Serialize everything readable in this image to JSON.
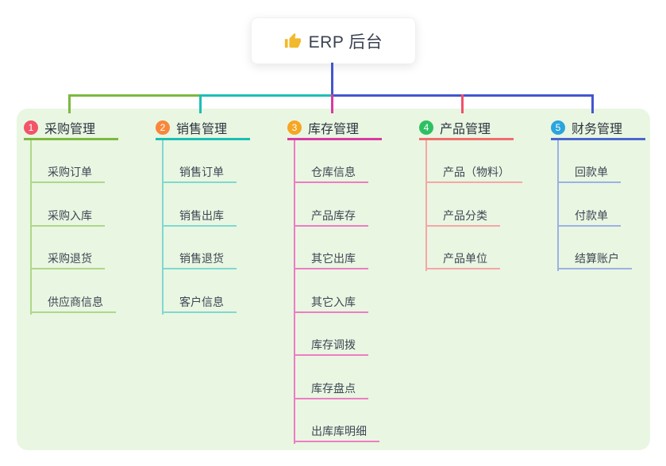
{
  "root": {
    "title": "ERP 后台",
    "icon": "thumbs-up-icon",
    "icon_color": "#f2b92c",
    "line_color": "#4356ce"
  },
  "panel_color": "#e9f6e2",
  "branches": [
    {
      "num": "1",
      "label": "采购管理",
      "badge_color": "#f25468",
      "main_color": "#7cb93e",
      "light_color": "#aed789",
      "children": [
        "采购订单",
        "采购入库",
        "采购退货",
        "供应商信息"
      ]
    },
    {
      "num": "2",
      "label": "销售管理",
      "badge_color": "#f8873b",
      "main_color": "#1cbfb4",
      "light_color": "#7fd9cf",
      "children": [
        "销售订单",
        "销售出库",
        "销售退货",
        "客户信息"
      ]
    },
    {
      "num": "3",
      "label": "库存管理",
      "badge_color": "#f6a623",
      "main_color": "#d83aa2",
      "light_color": "#ee7cc4",
      "children": [
        "仓库信息",
        "产品库存",
        "其它出库",
        "其它入库",
        "库存调拨",
        "库存盘点",
        "出库库明细"
      ]
    },
    {
      "num": "4",
      "label": "产品管理",
      "badge_color": "#2dc063",
      "main_color": "#f26d6d",
      "stub_color": "#ef5168",
      "light_color": "#f7a6a6",
      "children": [
        "产品（物料）",
        "产品分类",
        "产品单位"
      ]
    },
    {
      "num": "5",
      "label": "财务管理",
      "badge_color": "#2aa5dd",
      "main_color": "#4a67cf",
      "stub_color": "#4356ce",
      "light_color": "#9cb1e4",
      "children": [
        "回款单",
        "付款单",
        "结算账户"
      ]
    }
  ]
}
